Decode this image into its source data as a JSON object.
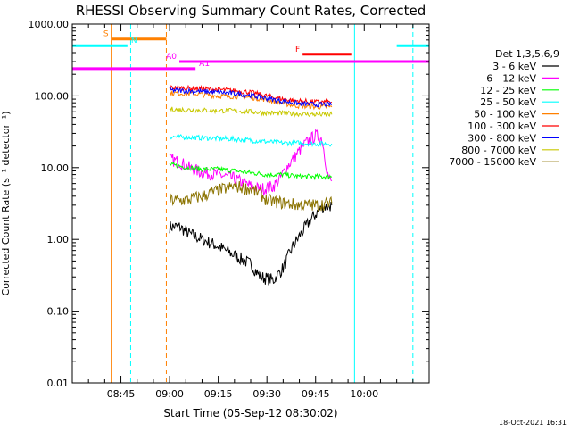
{
  "chart_data": {
    "type": "line",
    "title": "RHESSI Observing Summary Count Rates, Corrected",
    "xlabel": "Start Time (05-Sep-12 08:30:02)",
    "ylabel": "Corrected Count Rate (s⁻¹ detector⁻¹)",
    "yscale": "log",
    "ylim": [
      0.01,
      1000
    ],
    "xlim_minutes": [
      0,
      110
    ],
    "x_ticks": [
      {
        "t": 15,
        "label": "08:45"
      },
      {
        "t": 30,
        "label": "09:00"
      },
      {
        "t": 45,
        "label": "09:15"
      },
      {
        "t": 60,
        "label": "09:30"
      },
      {
        "t": 75,
        "label": "09:45"
      },
      {
        "t": 90,
        "label": "10:00"
      }
    ],
    "y_ticks": [
      {
        "v": 0.01,
        "label": "0.01"
      },
      {
        "v": 0.1,
        "label": "0.10"
      },
      {
        "v": 1,
        "label": "1.00"
      },
      {
        "v": 10,
        "label": "10.00"
      },
      {
        "v": 100,
        "label": "100.00"
      },
      {
        "v": 1000,
        "label": "1000.00"
      }
    ],
    "legend_title": "Det 1,3,5,6,9",
    "legend_placement": "right",
    "footer_date": "18-Oct-2021 16:31",
    "series": [
      {
        "name": "3 - 6 keV",
        "color": "#000000",
        "points": [
          [
            30,
            1.5
          ],
          [
            33,
            1.5
          ],
          [
            36,
            1.2
          ],
          [
            40,
            1.0
          ],
          [
            45,
            0.8
          ],
          [
            50,
            0.6
          ],
          [
            55,
            0.45
          ],
          [
            58,
            0.3
          ],
          [
            62,
            0.27
          ],
          [
            65,
            0.4
          ],
          [
            68,
            0.8
          ],
          [
            71,
            1.3
          ],
          [
            74,
            2.0
          ],
          [
            77,
            2.8
          ],
          [
            80,
            3.0
          ]
        ]
      },
      {
        "name": "6 - 12 keV",
        "color": "#ff00ff",
        "points": [
          [
            30,
            13
          ],
          [
            33,
            12
          ],
          [
            36,
            10
          ],
          [
            40,
            8.5
          ],
          [
            45,
            8
          ],
          [
            50,
            7
          ],
          [
            55,
            5.5
          ],
          [
            58,
            5
          ],
          [
            62,
            5.5
          ],
          [
            64,
            7
          ],
          [
            66,
            10
          ],
          [
            69,
            15
          ],
          [
            72,
            22
          ],
          [
            75,
            28
          ],
          [
            77,
            25
          ],
          [
            79,
            7
          ],
          [
            80,
            6.5
          ]
        ]
      },
      {
        "name": "12 - 25 keV",
        "color": "#00ff00",
        "points": [
          [
            30,
            11
          ],
          [
            33,
            10.5
          ],
          [
            36,
            10
          ],
          [
            40,
            9.5
          ],
          [
            45,
            9.5
          ],
          [
            50,
            9
          ],
          [
            55,
            8.5
          ],
          [
            60,
            8
          ],
          [
            65,
            8
          ],
          [
            70,
            7.5
          ],
          [
            75,
            7.5
          ],
          [
            80,
            7.5
          ]
        ]
      },
      {
        "name": "25 - 50 keV",
        "color": "#00ffff",
        "points": [
          [
            30,
            27
          ],
          [
            35,
            26.5
          ],
          [
            40,
            26
          ],
          [
            45,
            25.5
          ],
          [
            50,
            25
          ],
          [
            55,
            24
          ],
          [
            60,
            23
          ],
          [
            65,
            22
          ],
          [
            70,
            22
          ],
          [
            75,
            21.5
          ],
          [
            80,
            21.5
          ]
        ]
      },
      {
        "name": "50 - 100 keV",
        "color": "#ff8000",
        "points": [
          [
            30,
            110
          ],
          [
            35,
            108
          ],
          [
            40,
            105
          ],
          [
            45,
            100
          ],
          [
            50,
            98
          ],
          [
            55,
            95
          ],
          [
            60,
            88
          ],
          [
            65,
            78
          ],
          [
            70,
            72
          ],
          [
            75,
            70
          ],
          [
            80,
            70
          ]
        ]
      },
      {
        "name": "100 - 300 keV",
        "color": "#ff0000",
        "points": [
          [
            30,
            130
          ],
          [
            35,
            128
          ],
          [
            40,
            125
          ],
          [
            45,
            122
          ],
          [
            50,
            118
          ],
          [
            55,
            112
          ],
          [
            60,
            100
          ],
          [
            65,
            90
          ],
          [
            70,
            85
          ],
          [
            75,
            82
          ],
          [
            80,
            82
          ]
        ]
      },
      {
        "name": "300 - 800 keV",
        "color": "#0000ff",
        "points": [
          [
            30,
            120
          ],
          [
            35,
            118
          ],
          [
            40,
            115
          ],
          [
            45,
            112
          ],
          [
            50,
            108
          ],
          [
            55,
            102
          ],
          [
            60,
            92
          ],
          [
            65,
            84
          ],
          [
            70,
            78
          ],
          [
            75,
            76
          ],
          [
            80,
            76
          ]
        ]
      },
      {
        "name": "800 - 7000 keV",
        "color": "#c8c800",
        "points": [
          [
            30,
            65
          ],
          [
            35,
            64
          ],
          [
            40,
            63
          ],
          [
            45,
            62
          ],
          [
            50,
            62
          ],
          [
            55,
            60
          ],
          [
            60,
            58
          ],
          [
            65,
            57
          ],
          [
            70,
            56
          ],
          [
            75,
            55
          ],
          [
            80,
            55
          ]
        ]
      },
      {
        "name": "7000 - 15000 keV",
        "color": "#8b7300",
        "points": [
          [
            30,
            3.5
          ],
          [
            35,
            3.5
          ],
          [
            40,
            4.0
          ],
          [
            45,
            4.8
          ],
          [
            50,
            5.5
          ],
          [
            55,
            5.0
          ],
          [
            58,
            4.3
          ],
          [
            60,
            3.5
          ],
          [
            65,
            3.2
          ],
          [
            70,
            3.0
          ],
          [
            75,
            3.0
          ],
          [
            80,
            3.2
          ]
        ]
      }
    ],
    "annotations": [
      {
        "label": "S",
        "color": "#ff8000",
        "t_start": 12,
        "t_end": 29,
        "v": 620,
        "label_side": "left"
      },
      {
        "label": "N",
        "color": "#00ffff",
        "t_start": 0,
        "t_end": 17,
        "v": 500,
        "label_side": "right"
      },
      {
        "label": "N",
        "color": "#00ffff",
        "t_start": 100,
        "t_end": 110,
        "v": 500,
        "label_side": "none"
      },
      {
        "label": "A0",
        "color": "#ff00ff",
        "t_start": 33,
        "t_end": 110,
        "v": 300,
        "label_side": "left"
      },
      {
        "label": "A1",
        "color": "#ff00ff",
        "t_start": 0,
        "t_end": 38,
        "v": 240,
        "label_side": "right"
      },
      {
        "label": "F",
        "color": "#ff0000",
        "t_start": 71,
        "t_end": 86,
        "v": 380,
        "label_side": "left"
      }
    ],
    "vertical_markers": [
      {
        "t": 12,
        "color": "#ff8000",
        "style": "solid"
      },
      {
        "t": 29,
        "color": "#ff8000",
        "style": "dashed"
      },
      {
        "t": 18,
        "color": "#00ffff",
        "style": "dashed"
      },
      {
        "t": 87,
        "color": "#00ffff",
        "style": "solid"
      },
      {
        "t": 105,
        "color": "#00ffff",
        "style": "dashed"
      },
      {
        "t": 0,
        "color": "#00ffff",
        "style": "solid"
      }
    ]
  }
}
